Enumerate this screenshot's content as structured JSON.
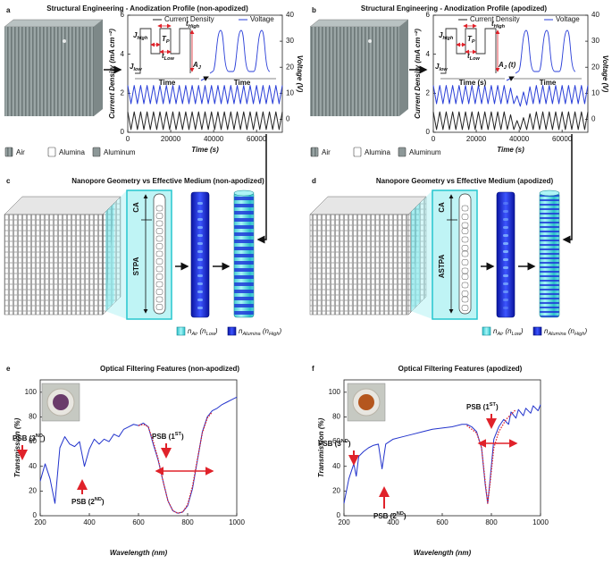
{
  "figure": {
    "panels": [
      {
        "letter": "a",
        "title": "Structural Engineering - Anodization Profile (non-apodized)",
        "materials": [
          "Air",
          "Alumina",
          "Aluminum"
        ]
      },
      {
        "letter": "b",
        "title": "Structural Engineering - Anodization Profile (apodized)",
        "materials": [
          "Air",
          "Alumina",
          "Aluminum"
        ]
      },
      {
        "letter": "c",
        "title": "Nanopore Geometry vs Effective Medium (non-apodized)",
        "region_labels": [
          "CA",
          "STPA"
        ],
        "legend": [
          [
            {
              "text": "n"
            },
            {
              "sub": "Air"
            },
            {
              "text": " (n"
            },
            {
              "sub": "Low"
            },
            {
              "text": ")"
            }
          ],
          [
            {
              "text": "n"
            },
            {
              "sub": "Alumina"
            },
            {
              "text": " (n"
            },
            {
              "sub": "High"
            },
            {
              "text": ")"
            }
          ]
        ]
      },
      {
        "letter": "d",
        "title": "Nanopore Geometry vs Effective Medium (apodized)",
        "region_labels": [
          "CA",
          "ASTPA"
        ],
        "legend": [
          [
            {
              "text": "n"
            },
            {
              "sub": "Air"
            },
            {
              "text": " (n"
            },
            {
              "sub": "Low"
            },
            {
              "text": ")"
            }
          ],
          [
            {
              "text": "n"
            },
            {
              "sub": "Alumina"
            },
            {
              "text": " (n"
            },
            {
              "sub": "High"
            },
            {
              "text": ")"
            }
          ]
        ]
      },
      {
        "letter": "e",
        "title": "Optical Filtering Features (non-apodized)"
      },
      {
        "letter": "f",
        "title": "Optical Filtering Features (apodized)"
      }
    ]
  },
  "chart_data": [
    {
      "type": "line",
      "x": [
        0,
        1500,
        3000,
        4500,
        6000,
        7500,
        9000,
        10500,
        12000,
        13500,
        15000,
        16500,
        18000,
        19500,
        21000,
        22500,
        24000,
        25500,
        27000,
        28500,
        30000,
        31500,
        33000,
        34500,
        36000,
        37500,
        39000,
        40500,
        42000,
        43500,
        45000,
        46500,
        48000,
        49500,
        51000,
        52500,
        54000,
        55500,
        57000,
        58500,
        60000,
        61500,
        63000,
        64500,
        66000,
        67500,
        69000,
        70500,
        72000
      ],
      "series": [
        {
          "name": "Current Density",
          "color": "#222222",
          "values": [
            1.05,
            0.14,
            1.05,
            0.14,
            1.05,
            0.14,
            1.05,
            0.14,
            1.05,
            0.14,
            1.05,
            0.14,
            1.05,
            0.14,
            1.05,
            0.14,
            1.05,
            0.14,
            1.05,
            0.14,
            1.05,
            0.14,
            1.05,
            0.14,
            1.05,
            0.14,
            1.05,
            0.14,
            1.05,
            0.14,
            1.05,
            0.14,
            1.05,
            0.14,
            1.05,
            0.14,
            1.05,
            0.14,
            1.05,
            0.14,
            1.05,
            0.14,
            1.05,
            0.14,
            1.05,
            0.14,
            1.05,
            0.14,
            1.05
          ]
        },
        {
          "name": "Voltage",
          "color": "#2a3fd8",
          "axis": "y2",
          "values": [
            13,
            6,
            13,
            6,
            13,
            6,
            13,
            6,
            13,
            6,
            13,
            6,
            13,
            6,
            13,
            6,
            13,
            6,
            13,
            6,
            13,
            6,
            13,
            6,
            13,
            6,
            13,
            6,
            13,
            6,
            13,
            6,
            13,
            6,
            13,
            6,
            13,
            6,
            13,
            6,
            13,
            6,
            13,
            6,
            13,
            6,
            13,
            6,
            13
          ]
        }
      ],
      "xlim": [
        0,
        72000
      ],
      "xticks": [
        0,
        20000,
        40000,
        60000
      ],
      "ylim": [
        0,
        6
      ],
      "yticks": [
        0,
        2,
        4,
        6
      ],
      "y2lim": [
        -5,
        40
      ],
      "y2ticks": [
        0,
        10,
        20,
        30,
        40
      ],
      "xlabel": "Time (s)",
      "ylabel": "Current Density (mA cm⁻²)",
      "y2label": "Voltage (V)",
      "inset_labels": [
        [
          {
            "text": "J"
          },
          {
            "sub": "high"
          }
        ],
        [
          {
            "text": "T"
          },
          {
            "sub": "P"
          }
        ],
        [
          {
            "text": "t"
          },
          {
            "sub": "Low"
          }
        ],
        [
          {
            "text": "t"
          },
          {
            "sub": "High"
          }
        ],
        [
          {
            "text": "J"
          },
          {
            "sub": "low"
          }
        ],
        [
          {
            "text": "A"
          },
          {
            "sub": "J"
          }
        ]
      ],
      "inset_axis_labels": [
        "Time",
        "Time"
      ]
    },
    {
      "type": "line",
      "x": [
        0,
        1500,
        3000,
        4500,
        6000,
        7500,
        9000,
        10500,
        12000,
        13500,
        15000,
        16500,
        18000,
        19500,
        21000,
        22500,
        24000,
        25500,
        27000,
        28500,
        30000,
        31500,
        33000,
        34500,
        36000,
        37500,
        39000,
        40500,
        42000,
        43500,
        45000,
        46500,
        48000,
        49500,
        51000,
        52500,
        54000,
        55500,
        57000,
        58500,
        60000,
        61500,
        63000,
        64500,
        66000,
        67500,
        69000,
        70500,
        72000
      ],
      "series": [
        {
          "name": "Current Density",
          "color": "#222222",
          "values": [
            1.05,
            0.14,
            1.05,
            0.14,
            1.05,
            0.14,
            1.05,
            0.14,
            1.05,
            0.14,
            1.05,
            0.14,
            1.05,
            0.14,
            1.05,
            0.14,
            1.05,
            0.14,
            1.05,
            0.14,
            1.05,
            0.14,
            1.05,
            0.14,
            0.9,
            0.14,
            0.6,
            0.14,
            0.75,
            0.14,
            0.95,
            0.14,
            1.05,
            0.14,
            1.05,
            0.14,
            1.05,
            0.14,
            1.05,
            0.14,
            1.05,
            0.14,
            1.05,
            0.14,
            1.05,
            0.14,
            1.05,
            0.14,
            1.05
          ]
        },
        {
          "name": "Voltage",
          "color": "#2a3fd8",
          "axis": "y2",
          "values": [
            13,
            6,
            13,
            6,
            13,
            6,
            13,
            6,
            13,
            6,
            13,
            6,
            13,
            6,
            13,
            6,
            13,
            6,
            13,
            6,
            13,
            6,
            13,
            6,
            12,
            6,
            9,
            5,
            10.5,
            5.5,
            12.5,
            6,
            13,
            6,
            13,
            6,
            13,
            6,
            13,
            6,
            13,
            6,
            13,
            6,
            13,
            6,
            13,
            6,
            13
          ]
        }
      ],
      "xlim": [
        0,
        72000
      ],
      "xticks": [
        0,
        20000,
        40000,
        60000
      ],
      "ylim": [
        0,
        6
      ],
      "yticks": [
        0,
        2,
        4,
        6
      ],
      "y2lim": [
        -5,
        40
      ],
      "y2ticks": [
        0,
        10,
        20,
        30,
        40
      ],
      "xlabel": "Time (s)",
      "ylabel": "Current Density (mA cm⁻²)",
      "y2label": "Voltage (V)",
      "inset_labels": [
        [
          {
            "text": "J"
          },
          {
            "sub": "high"
          }
        ],
        [
          {
            "text": "T"
          },
          {
            "sub": "P"
          }
        ],
        [
          {
            "text": "t"
          },
          {
            "sub": "Low"
          }
        ],
        [
          {
            "text": "t"
          },
          {
            "sub": "High"
          }
        ],
        [
          {
            "text": "J"
          },
          {
            "sub": "low"
          }
        ],
        [
          {
            "text": "A"
          },
          {
            "sub": "J"
          },
          {
            "text": " (t)"
          }
        ]
      ],
      "inset_axis_labels": [
        "Time (s)",
        "Time"
      ]
    },
    {
      "type": "line",
      "series": [
        {
          "color": "#2233cc",
          "x": [
            200,
            220,
            240,
            260,
            280,
            300,
            320,
            340,
            360,
            380,
            400,
            420,
            440,
            460,
            480,
            500,
            520,
            540,
            560,
            580,
            600,
            620,
            640,
            660,
            680,
            700,
            720,
            740,
            760,
            780,
            800,
            820,
            840,
            860,
            880,
            900,
            920,
            940,
            960,
            980,
            1000
          ],
          "values": [
            28,
            42,
            30,
            10,
            55,
            64,
            58,
            56,
            60,
            40,
            54,
            62,
            58,
            62,
            60,
            66,
            64,
            70,
            72,
            74,
            73,
            75,
            72,
            58,
            45,
            28,
            12,
            4,
            2,
            3,
            8,
            22,
            45,
            68,
            80,
            85,
            87,
            90,
            92,
            94,
            96
          ]
        },
        {
          "color": "#e0222a",
          "dashed": true,
          "x": [
            600,
            620,
            640,
            660,
            680,
            700,
            720,
            740,
            760,
            780,
            800,
            820,
            840,
            860,
            880,
            900
          ],
          "values": [
            73,
            74,
            72,
            60,
            46,
            28,
            12,
            4,
            2,
            3,
            9,
            24,
            46,
            67,
            79,
            84
          ]
        }
      ],
      "xlim": [
        200,
        1000
      ],
      "xticks": [
        200,
        400,
        600,
        800,
        1000
      ],
      "ylim": [
        0,
        110
      ],
      "yticks": [
        0,
        20,
        40,
        60,
        80,
        100
      ],
      "xlabel": "Wavelength (nm)",
      "ylabel": "Transmission (%)",
      "annotations": [
        [
          {
            "text": "PSB (3"
          },
          {
            "sup": "ND"
          },
          {
            "text": ")"
          }
        ],
        [
          {
            "text": "PSB (2"
          },
          {
            "sup": "ND"
          },
          {
            "text": ")"
          }
        ],
        [
          {
            "text": "PSB (1"
          },
          {
            "sup": "ST"
          },
          {
            "text": ")"
          }
        ]
      ]
    },
    {
      "type": "line",
      "series": [
        {
          "color": "#2233cc",
          "x": [
            200,
            220,
            240,
            250,
            260,
            280,
            300,
            320,
            340,
            355,
            370,
            400,
            440,
            480,
            520,
            560,
            600,
            640,
            680,
            700,
            720,
            740,
            760,
            775,
            785,
            795,
            810,
            830,
            850,
            870,
            880,
            900,
            910,
            930,
            940,
            960,
            970,
            990,
            1000
          ],
          "values": [
            10,
            30,
            42,
            32,
            48,
            52,
            55,
            57,
            58,
            38,
            58,
            62,
            64,
            66,
            68,
            70,
            71,
            72,
            74,
            74,
            72,
            68,
            55,
            25,
            10,
            30,
            62,
            72,
            78,
            74,
            84,
            79,
            86,
            81,
            87,
            83,
            89,
            85,
            90
          ]
        },
        {
          "color": "#e0222a",
          "dashed": true,
          "x": [
            700,
            740,
            760,
            775,
            785,
            795,
            810,
            830,
            860,
            900
          ],
          "values": [
            73,
            67,
            55,
            27,
            10,
            27,
            55,
            68,
            78,
            86
          ]
        }
      ],
      "xlim": [
        200,
        1000
      ],
      "xticks": [
        200,
        400,
        600,
        800,
        1000
      ],
      "ylim": [
        0,
        110
      ],
      "yticks": [
        0,
        20,
        40,
        60,
        80,
        100
      ],
      "xlabel": "Wavelength (nm)",
      "ylabel": "Transmission (%)",
      "annotations": [
        [
          {
            "text": "PSB (3"
          },
          {
            "sup": "ND"
          },
          {
            "text": ")"
          }
        ],
        [
          {
            "text": "PSB (2"
          },
          {
            "sup": "ND"
          },
          {
            "text": ")"
          }
        ],
        [
          {
            "text": "PSB (1"
          },
          {
            "sup": "ST"
          },
          {
            "text": ")"
          }
        ]
      ]
    }
  ]
}
